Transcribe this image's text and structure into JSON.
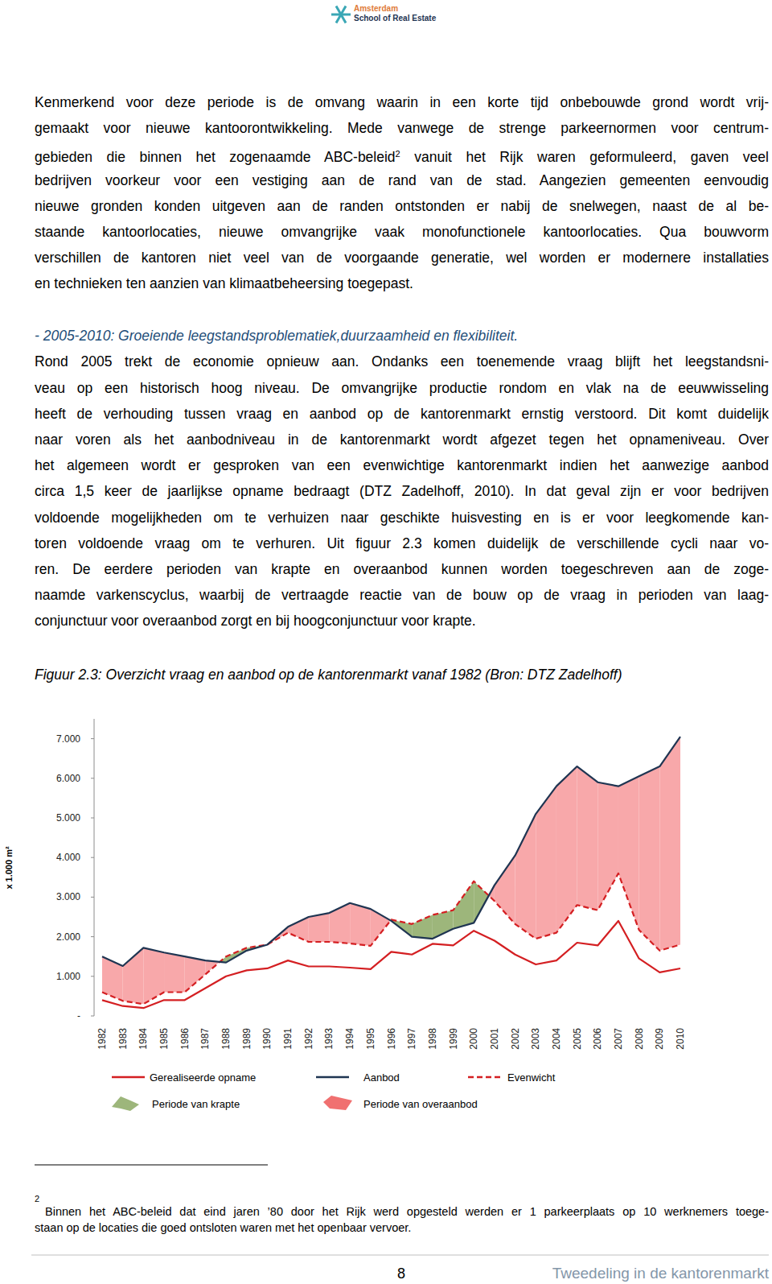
{
  "header": {
    "logo_lines": [
      "Amsterdam",
      "School of Real Estate"
    ]
  },
  "paragraph_1": [
    "Kenmerkend voor deze periode is de omvang waarin in een korte tijd onbebouwde grond wordt vrij-",
    "gemaakt voor nieuwe kantoorontwikkeling. Mede vanwege de strenge parkeernormen voor centrum-",
    {
      "before": "gebieden die binnen het zogenaamde ABC-beleid",
      "sup": "2",
      "after": " vanuit het Rijk waren geformuleerd, gaven veel"
    },
    "bedrijven voorkeur voor een vestiging aan de rand van de stad. Aangezien gemeenten eenvoudig",
    "nieuwe gronden konden uitgeven aan de randen ontstonden er nabij de snelwegen, naast de al be-",
    "staande kantoorlocaties, nieuwe omvangrijke vaak monofunctionele kantoorlocaties. Qua bouwvorm",
    "verschillen de kantoren niet veel van de voorgaande generatie, wel worden er modernere installaties",
    "en technieken ten aanzien van klimaatbeheersing toegepast."
  ],
  "section_heading": "- 2005-2010: Groeiende leegstandsproblematiek,duurzaamheid en flexibiliteit.",
  "paragraph_2": [
    "Rond 2005 trekt de economie opnieuw aan. Ondanks een toenemende vraag blijft het leegstandsni-",
    "veau op een historisch hoog niveau. De omvangrijke productie rondom en vlak na de eeuwwisseling",
    "heeft de verhouding tussen vraag en aanbod op de kantorenmarkt ernstig verstoord. Dit komt duidelijk",
    "naar voren als het aanbodniveau in de kantorenmarkt wordt afgezet tegen het opnameniveau. Over",
    "het algemeen wordt er gesproken van een evenwichtige kantorenmarkt indien het aanwezige aanbod",
    "circa 1,5 keer de jaarlijkse opname bedraagt (DTZ Zadelhoff, 2010). In dat geval zijn er voor bedrijven",
    "voldoende mogelijkheden om te verhuizen naar geschikte huisvesting en is er voor leegkomende kan-",
    "toren voldoende vraag om te verhuren. Uit figuur 2.3 komen duidelijk de verschillende cycli naar vo-",
    "ren. De eerdere perioden van krapte en overaanbod kunnen worden toegeschreven aan de zoge-",
    "naamde varkenscyclus, waarbij de vertraagde reactie van de bouw op de vraag in perioden van laag-",
    "conjunctuur voor overaanbod zorgt en bij hoogconjunctuur voor krapte."
  ],
  "figure_caption": "Figuur 2.3: Overzicht vraag en aanbod op de kantorenmarkt vanaf 1982 (Bron: DTZ Zadelhoff)",
  "chart_data": {
    "type": "line",
    "y_label": "x 1.000 m²",
    "categories": [
      "1982",
      "1983",
      "1984",
      "1985",
      "1986",
      "1987",
      "1988",
      "1989",
      "1990",
      "1991",
      "1992",
      "1993",
      "1994",
      "1995",
      "1996",
      "1997",
      "1998",
      "1999",
      "2000",
      "2001",
      "2002",
      "2003",
      "2004",
      "2005",
      "2006",
      "2007",
      "2008",
      "2009",
      "2010"
    ],
    "ylim": [
      0,
      7500
    ],
    "yticks": [
      {
        "value": 0,
        "label": "-"
      },
      {
        "value": 1000,
        "label": "1.000"
      },
      {
        "value": 2000,
        "label": "2.000"
      },
      {
        "value": 3000,
        "label": "3.000"
      },
      {
        "value": 4000,
        "label": "4.000"
      },
      {
        "value": 5000,
        "label": "5.000"
      },
      {
        "value": 6000,
        "label": "6.000"
      },
      {
        "value": 7000,
        "label": "7.000"
      }
    ],
    "grid": false,
    "legend": "bottom",
    "series": [
      {
        "name": "Gerealiseerde opname",
        "color": "#d41f22",
        "line_style": "solid",
        "values": [
          400,
          250,
          200,
          400,
          400,
          700,
          1000,
          1150,
          1200,
          1400,
          1250,
          1250,
          1220,
          1180,
          1620,
          1550,
          1820,
          1780,
          2150,
          1900,
          1550,
          1300,
          1400,
          1850,
          1780,
          2400,
          1450,
          1100,
          1200
        ]
      },
      {
        "name": "Aanbod",
        "color": "#1f3552",
        "line_style": "solid",
        "values": [
          1500,
          1260,
          1720,
          1600,
          1500,
          1400,
          1350,
          1650,
          1800,
          2250,
          2500,
          2600,
          2850,
          2700,
          2400,
          2000,
          1950,
          2200,
          2350,
          3300,
          4050,
          5100,
          5800,
          6300,
          5900,
          5800,
          6050,
          6300,
          7050
        ]
      },
      {
        "name": "Evenwicht",
        "color": "#d41f22",
        "line_style": "dashed",
        "values": [
          600,
          380,
          300,
          600,
          600,
          1050,
          1500,
          1720,
          1800,
          2100,
          1870,
          1870,
          1830,
          1770,
          2430,
          2320,
          2550,
          2670,
          3400,
          2900,
          2320,
          1950,
          2100,
          2800,
          2670,
          3600,
          2170,
          1650,
          1800
        ]
      }
    ],
    "areas": [
      {
        "name": "Periode van krapte",
        "color": "#9db67b"
      },
      {
        "name": "Periode van overaanbod",
        "color": "#f8a8aa"
      }
    ]
  },
  "footnote": {
    "mark": "2",
    "lines": [
      "Binnen het ABC-beleid dat eind jaren ’80 door het Rijk werd opgesteld werden er 1 parkeerplaats op 10 werknemers toege-",
      "staan op de locaties die goed ontsloten waren met het openbaar vervoer."
    ]
  },
  "footer": {
    "page": 8,
    "title": "Tweedeling in de kantorenmarkt"
  }
}
